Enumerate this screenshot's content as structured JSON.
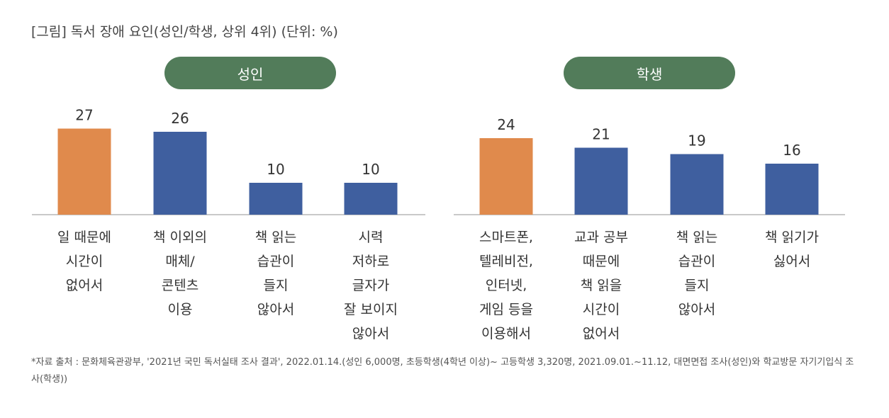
{
  "title": "[그림] 독서 장애 요인(성인/학생, 상위 4위) (단위: %)",
  "colors": {
    "pill": "#527c5a",
    "highlight": "#e08a4c",
    "bar": "#3f5f9f",
    "axis": "#c9c9c9"
  },
  "chart_data": [
    {
      "type": "bar",
      "title": "성인",
      "categories": [
        "일 때문에\n시간이\n없어서",
        "책 이외의\n매체/\n콘텐츠\n이용",
        "책 읽는\n습관이\n들지\n않아서",
        "시력\n저하로\n글자가\n잘 보이지\n않아서"
      ],
      "values": [
        27,
        26,
        10,
        10
      ],
      "value_labels": [
        "27",
        "26",
        "10",
        "10"
      ],
      "highlight_index": 0
    },
    {
      "type": "bar",
      "title": "학생",
      "categories": [
        "스마트폰,\n텔레비전,\n인터넷,\n게임 등을\n이용해서",
        "교과 공부\n때문에\n책 읽을\n시간이\n없어서",
        "책 읽는\n습관이\n들지\n않아서",
        "책 읽기가\n싫어서"
      ],
      "values": [
        24,
        21,
        19,
        16
      ],
      "value_labels": [
        "24",
        "21",
        "19",
        "16"
      ],
      "highlight_index": 0
    }
  ],
  "source": "*자료 출처 : 문화체육관광부, '2021년 국민 독서실태 조사 결과', 2022.01.14.(성인 6,000명, 초등학생(4학년 이상)~ 고등학생 3,320명, 2021.09.01.~11.12, 대면면접 조사(성인)와 학교방문 자기기입식 조사(학생))"
}
